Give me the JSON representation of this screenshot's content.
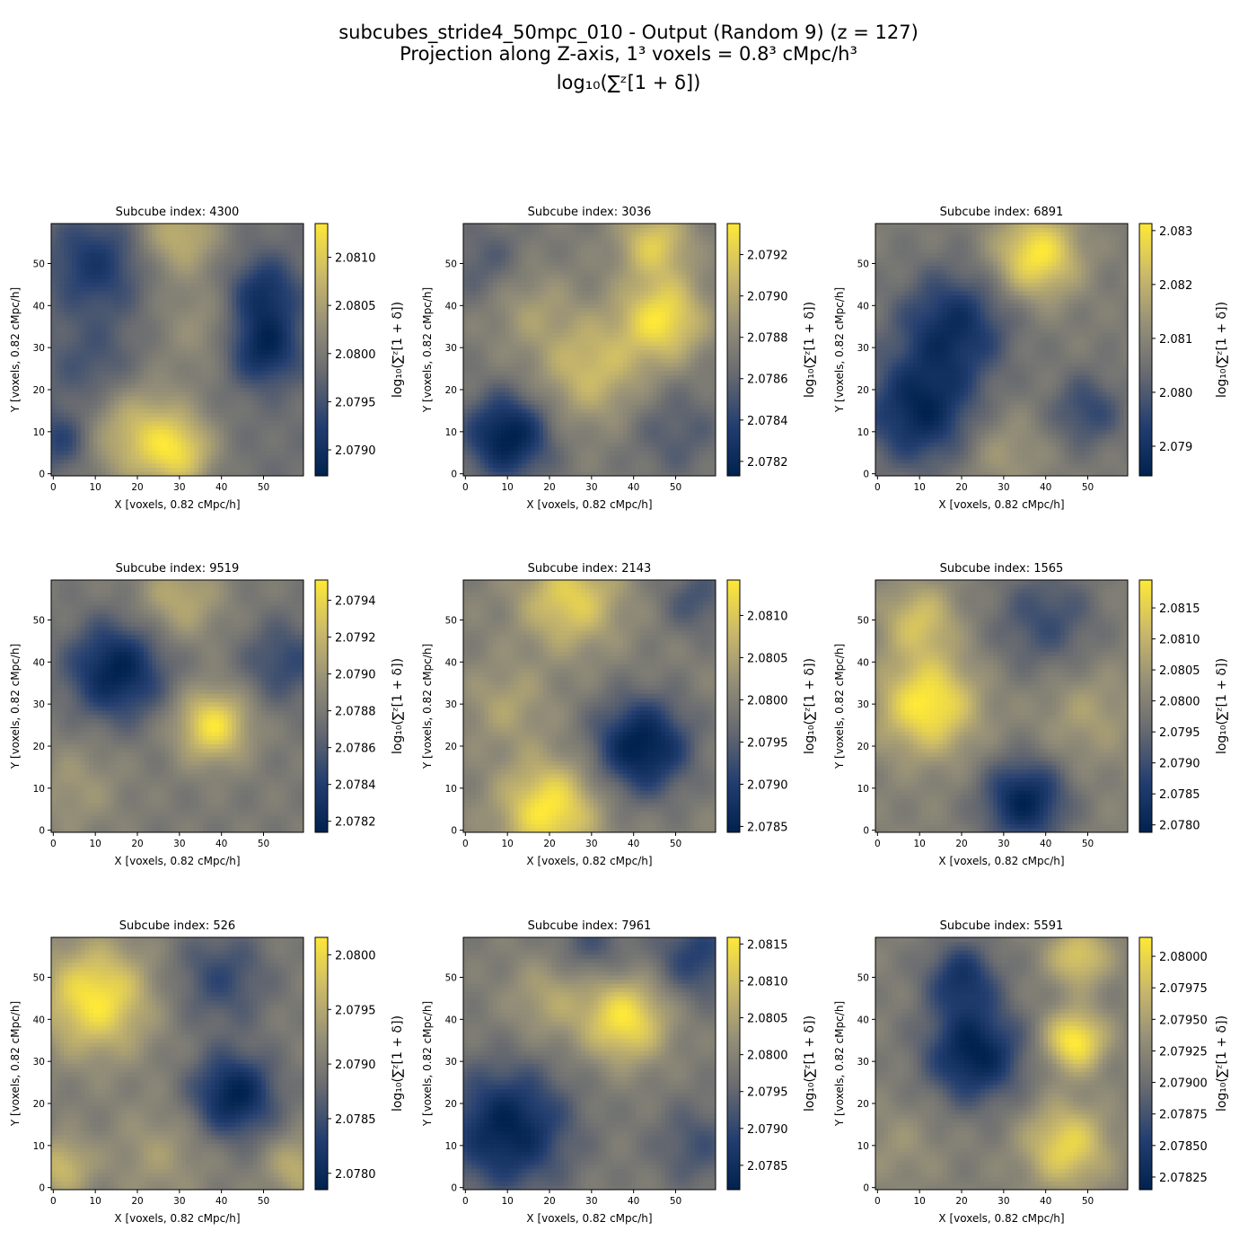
{
  "figure": {
    "title_line1": "subcubes_stride4_50mpc_010 - Output (Random 9) (z = 127)",
    "title_line2": "Projection along Z-axis, 1³ voxels = 0.8³ cMpc/h³",
    "title_line3": "log₁₀(∑ᶻ[1 + δ])"
  },
  "colormap": "cividis",
  "chart_data": [
    {
      "type": "heatmap",
      "title": "Subcube index: 4300",
      "xlabel": "X [voxels, 0.82 cMpc/h]",
      "ylabel": "Y [voxels, 0.82 cMpc/h]",
      "xticks": [
        "0",
        "10",
        "20",
        "30",
        "40",
        "50"
      ],
      "yticks": [
        "0",
        "10",
        "20",
        "30",
        "40",
        "50"
      ],
      "xlim": [
        0,
        59
      ],
      "ylim": [
        0,
        59
      ],
      "colorbar_label": "log₁₀(∑ᶻ[1 + δ])",
      "vmin": 2.07873,
      "vmax": 2.08135,
      "colorbar_ticks": [
        "2.0790",
        "2.0795",
        "2.0800",
        "2.0805",
        "2.0810"
      ],
      "features": [
        {
          "x": 30,
          "y": 57,
          "amp": 0.8,
          "sigma": 7
        },
        {
          "x": 20,
          "y": 10,
          "amp": 0.9,
          "sigma": 9
        },
        {
          "x": 30,
          "y": 5,
          "amp": 0.9,
          "sigma": 6
        },
        {
          "x": 35,
          "y": 35,
          "amp": 0.4,
          "sigma": 8
        },
        {
          "x": 50,
          "y": 30,
          "amp": -1,
          "sigma": 6
        },
        {
          "x": 50,
          "y": 43,
          "amp": -0.8,
          "sigma": 6
        },
        {
          "x": 10,
          "y": 50,
          "amp": -0.7,
          "sigma": 8
        },
        {
          "x": 2,
          "y": 8,
          "amp": -0.6,
          "sigma": 5
        },
        {
          "x": 10,
          "y": 25,
          "amp": -0.4,
          "sigma": 8
        }
      ]
    },
    {
      "type": "heatmap",
      "title": "Subcube index: 3036",
      "xlabel": "X [voxels, 0.82 cMpc/h]",
      "ylabel": "Y [voxels, 0.82 cMpc/h]",
      "xticks": [
        "0",
        "10",
        "20",
        "30",
        "40",
        "50"
      ],
      "yticks": [
        "0",
        "10",
        "20",
        "30",
        "40",
        "50"
      ],
      "xlim": [
        0,
        59
      ],
      "ylim": [
        0,
        59
      ],
      "colorbar_label": "log₁₀(∑ᶻ[1 + δ])",
      "vmin": 2.07813,
      "vmax": 2.07935,
      "colorbar_ticks": [
        "2.0782",
        "2.0784",
        "2.0786",
        "2.0788",
        "2.0790",
        "2.0792"
      ],
      "features": [
        {
          "x": 10,
          "y": 9,
          "amp": -1,
          "sigma": 7
        },
        {
          "x": 47,
          "y": 37,
          "amp": 0.9,
          "sigma": 7
        },
        {
          "x": 45,
          "y": 55,
          "amp": 0.7,
          "sigma": 6
        },
        {
          "x": 30,
          "y": 25,
          "amp": 0.6,
          "sigma": 9
        },
        {
          "x": 15,
          "y": 40,
          "amp": 0.3,
          "sigma": 7
        },
        {
          "x": 5,
          "y": 50,
          "amp": -0.3,
          "sigma": 7
        },
        {
          "x": 50,
          "y": 10,
          "amp": -0.3,
          "sigma": 8
        }
      ]
    },
    {
      "type": "heatmap",
      "title": "Subcube index: 6891",
      "xlabel": "X [voxels, 0.82 cMpc/h]",
      "ylabel": "Y [voxels, 0.82 cMpc/h]",
      "xticks": [
        "0",
        "10",
        "20",
        "30",
        "40",
        "50"
      ],
      "yticks": [
        "0",
        "10",
        "20",
        "30",
        "40",
        "50"
      ],
      "xlim": [
        0,
        59
      ],
      "ylim": [
        0,
        59
      ],
      "colorbar_label": "log₁₀(∑ᶻ[1 + δ])",
      "vmin": 2.07845,
      "vmax": 2.08313,
      "colorbar_ticks": [
        "2.079",
        "2.080",
        "2.081",
        "2.082",
        "2.083"
      ],
      "features": [
        {
          "x": 38,
          "y": 52,
          "amp": 1,
          "sigma": 7
        },
        {
          "x": 10,
          "y": 15,
          "amp": -0.9,
          "sigma": 9
        },
        {
          "x": 18,
          "y": 35,
          "amp": -0.8,
          "sigma": 9
        },
        {
          "x": 50,
          "y": 15,
          "amp": -0.5,
          "sigma": 6
        },
        {
          "x": 30,
          "y": 5,
          "amp": 0.3,
          "sigma": 7
        }
      ]
    },
    {
      "type": "heatmap",
      "title": "Subcube index: 9519",
      "xlabel": "X [voxels, 0.82 cMpc/h]",
      "ylabel": "Y [voxels, 0.82 cMpc/h]",
      "xticks": [
        "0",
        "10",
        "20",
        "30",
        "40",
        "50"
      ],
      "yticks": [
        "0",
        "10",
        "20",
        "30",
        "40",
        "50"
      ],
      "xlim": [
        0,
        59
      ],
      "ylim": [
        0,
        59
      ],
      "colorbar_label": "log₁₀(∑ᶻ[1 + δ])",
      "vmin": 2.07814,
      "vmax": 2.07951,
      "colorbar_ticks": [
        "2.0782",
        "2.0784",
        "2.0786",
        "2.0788",
        "2.0790",
        "2.0792",
        "2.0794"
      ],
      "features": [
        {
          "x": 15,
          "y": 38,
          "amp": -1,
          "sigma": 8
        },
        {
          "x": 38,
          "y": 25,
          "amp": 1,
          "sigma": 6
        },
        {
          "x": 30,
          "y": 55,
          "amp": 0.5,
          "sigma": 7
        },
        {
          "x": 55,
          "y": 40,
          "amp": -0.5,
          "sigma": 7
        },
        {
          "x": 5,
          "y": 10,
          "amp": 0.3,
          "sigma": 8
        }
      ]
    },
    {
      "type": "heatmap",
      "title": "Subcube index: 2143",
      "xlabel": "X [voxels, 0.82 cMpc/h]",
      "ylabel": "Y [voxels, 0.82 cMpc/h]",
      "xticks": [
        "0",
        "10",
        "20",
        "30",
        "40",
        "50"
      ],
      "yticks": [
        "0",
        "10",
        "20",
        "30",
        "40",
        "50"
      ],
      "xlim": [
        0,
        59
      ],
      "ylim": [
        0,
        59
      ],
      "colorbar_label": "log₁₀(∑ᶻ[1 + δ])",
      "vmin": 2.07843,
      "vmax": 2.08142,
      "colorbar_ticks": [
        "2.0785",
        "2.0790",
        "2.0795",
        "2.0800",
        "2.0805",
        "2.0810"
      ],
      "features": [
        {
          "x": 42,
          "y": 20,
          "amp": -1,
          "sigma": 8
        },
        {
          "x": 20,
          "y": 5,
          "amp": 0.9,
          "sigma": 8
        },
        {
          "x": 25,
          "y": 55,
          "amp": 0.7,
          "sigma": 8
        },
        {
          "x": 10,
          "y": 30,
          "amp": 0.3,
          "sigma": 7
        },
        {
          "x": 55,
          "y": 55,
          "amp": -0.4,
          "sigma": 6
        }
      ]
    },
    {
      "type": "heatmap",
      "title": "Subcube index: 1565",
      "xlabel": "X [voxels, 0.82 cMpc/h]",
      "ylabel": "Y [voxels, 0.82 cMpc/h]",
      "xticks": [
        "0",
        "10",
        "20",
        "30",
        "40",
        "50"
      ],
      "yticks": [
        "0",
        "10",
        "20",
        "30",
        "40",
        "50"
      ],
      "xlim": [
        0,
        59
      ],
      "ylim": [
        0,
        59
      ],
      "colorbar_label": "log₁₀(∑ᶻ[1 + δ])",
      "vmin": 2.07788,
      "vmax": 2.08195,
      "colorbar_ticks": [
        "2.0780",
        "2.0785",
        "2.0790",
        "2.0795",
        "2.0800",
        "2.0805",
        "2.0810",
        "2.0815"
      ],
      "features": [
        {
          "x": 12,
          "y": 30,
          "amp": 1,
          "sigma": 8
        },
        {
          "x": 10,
          "y": 50,
          "amp": 0.6,
          "sigma": 6
        },
        {
          "x": 35,
          "y": 7,
          "amp": -1,
          "sigma": 7
        },
        {
          "x": 40,
          "y": 50,
          "amp": -0.5,
          "sigma": 9
        },
        {
          "x": 50,
          "y": 28,
          "amp": 0.3,
          "sigma": 8
        }
      ]
    },
    {
      "type": "heatmap",
      "title": "Subcube index: 526",
      "xlabel": "X [voxels, 0.82 cMpc/h]",
      "ylabel": "Y [voxels, 0.82 cMpc/h]",
      "xticks": [
        "0",
        "10",
        "20",
        "30",
        "40",
        "50"
      ],
      "yticks": [
        "0",
        "10",
        "20",
        "30",
        "40",
        "50"
      ],
      "xlim": [
        0,
        59
      ],
      "ylim": [
        0,
        59
      ],
      "colorbar_label": "log₁₀(∑ᶻ[1 + δ])",
      "vmin": 2.07785,
      "vmax": 2.08016,
      "colorbar_ticks": [
        "2.0780",
        "2.0785",
        "2.0790",
        "2.0795",
        "2.0800"
      ],
      "features": [
        {
          "x": 10,
          "y": 45,
          "amp": 1,
          "sigma": 9
        },
        {
          "x": 43,
          "y": 22,
          "amp": -1,
          "sigma": 7
        },
        {
          "x": 2,
          "y": 5,
          "amp": 0.6,
          "sigma": 5
        },
        {
          "x": 58,
          "y": 5,
          "amp": 0.5,
          "sigma": 5
        },
        {
          "x": 40,
          "y": 50,
          "amp": -0.5,
          "sigma": 8
        },
        {
          "x": 25,
          "y": 8,
          "amp": 0.3,
          "sigma": 8
        }
      ]
    },
    {
      "type": "heatmap",
      "title": "Subcube index: 7961",
      "xlabel": "X [voxels, 0.82 cMpc/h]",
      "ylabel": "Y [voxels, 0.82 cMpc/h]",
      "xticks": [
        "0",
        "10",
        "20",
        "30",
        "40",
        "50"
      ],
      "yticks": [
        "0",
        "10",
        "20",
        "30",
        "40",
        "50"
      ],
      "xlim": [
        0,
        59
      ],
      "ylim": [
        0,
        59
      ],
      "colorbar_label": "log₁₀(∑ᶻ[1 + δ])",
      "vmin": 2.07817,
      "vmax": 2.08159,
      "colorbar_ticks": [
        "2.0785",
        "2.0790",
        "2.0795",
        "2.0800",
        "2.0805",
        "2.0810",
        "2.0815"
      ],
      "features": [
        {
          "x": 10,
          "y": 14,
          "amp": -1,
          "sigma": 10
        },
        {
          "x": 38,
          "y": 40,
          "amp": 1,
          "sigma": 7
        },
        {
          "x": 20,
          "y": 45,
          "amp": 0.4,
          "sigma": 7
        },
        {
          "x": 55,
          "y": 55,
          "amp": -0.6,
          "sigma": 7
        },
        {
          "x": 30,
          "y": 58,
          "amp": -0.4,
          "sigma": 6
        },
        {
          "x": 55,
          "y": 10,
          "amp": -0.4,
          "sigma": 7
        }
      ]
    },
    {
      "type": "heatmap",
      "title": "Subcube index: 5591",
      "xlabel": "X [voxels, 0.82 cMpc/h]",
      "ylabel": "Y [voxels, 0.82 cMpc/h]",
      "xticks": [
        "0",
        "10",
        "20",
        "30",
        "40",
        "50"
      ],
      "yticks": [
        "0",
        "10",
        "20",
        "30",
        "40",
        "50"
      ],
      "xlim": [
        0,
        59
      ],
      "ylim": [
        0,
        59
      ],
      "colorbar_label": "log₁₀(∑ᶻ[1 + δ])",
      "vmin": 2.07815,
      "vmax": 2.08015,
      "colorbar_ticks": [
        "2.07825",
        "2.07850",
        "2.07875",
        "2.07900",
        "2.07925",
        "2.07950",
        "2.07975",
        "2.08000"
      ],
      "features": [
        {
          "x": 23,
          "y": 32,
          "amp": -1,
          "sigma": 8
        },
        {
          "x": 20,
          "y": 50,
          "amp": -0.7,
          "sigma": 6
        },
        {
          "x": 47,
          "y": 35,
          "amp": 1,
          "sigma": 5
        },
        {
          "x": 45,
          "y": 10,
          "amp": 0.8,
          "sigma": 7
        },
        {
          "x": 48,
          "y": 55,
          "amp": 0.7,
          "sigma": 5
        },
        {
          "x": 5,
          "y": 10,
          "amp": 0.2,
          "sigma": 7
        }
      ]
    }
  ]
}
